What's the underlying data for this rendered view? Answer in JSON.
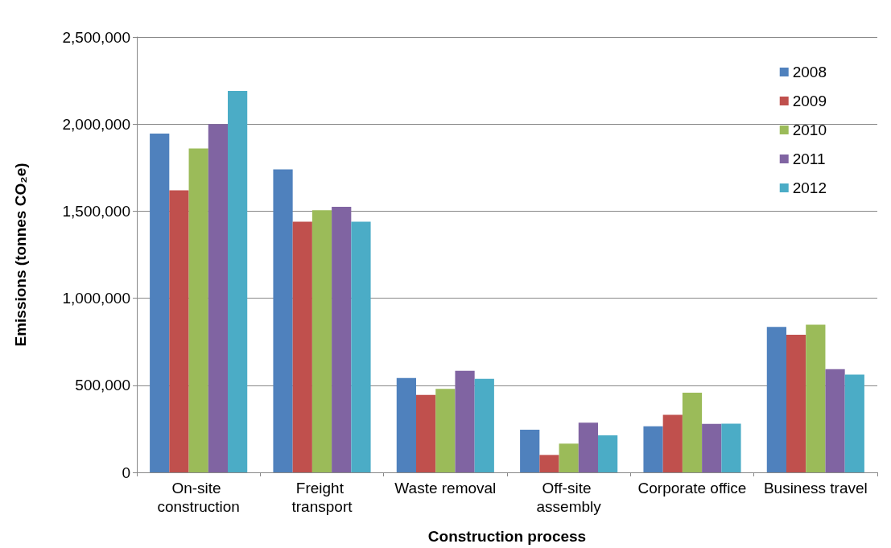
{
  "chart_data": {
    "type": "bar",
    "xlabel": "Construction process",
    "ylabel": "Emissions (tonnes CO₂e)",
    "categories": [
      "On-site construction",
      "Freight transport",
      "Waste removal",
      "Off-site assembly",
      "Corporate office",
      "Business travel"
    ],
    "series": [
      {
        "name": "2008",
        "color": "#4f81bd",
        "values": [
          1945000,
          1740000,
          542000,
          245000,
          265000,
          835000
        ]
      },
      {
        "name": "2009",
        "color": "#c0504d",
        "values": [
          1620000,
          1440000,
          445000,
          100000,
          330000,
          790000
        ]
      },
      {
        "name": "2010",
        "color": "#9bbb59",
        "values": [
          1860000,
          1505000,
          480000,
          165000,
          457000,
          848000
        ]
      },
      {
        "name": "2011",
        "color": "#8064a2",
        "values": [
          2000000,
          1525000,
          583000,
          285000,
          278000,
          593000
        ]
      },
      {
        "name": "2012",
        "color": "#4bacc6",
        "values": [
          2190000,
          1440000,
          537000,
          212000,
          280000,
          562000
        ]
      }
    ],
    "ylim": [
      0,
      2500000
    ],
    "yticks": [
      0,
      {
        "value": 500000,
        "label": "500,000"
      },
      {
        "value": 1000000,
        "label": "1,000,000"
      },
      {
        "value": 1500000,
        "label": "1,500,000"
      },
      {
        "value": 2000000,
        "label": "2,000,000"
      },
      {
        "value": 2500000,
        "label": "2,500,000"
      }
    ],
    "grid": "y",
    "legend": "top right"
  }
}
